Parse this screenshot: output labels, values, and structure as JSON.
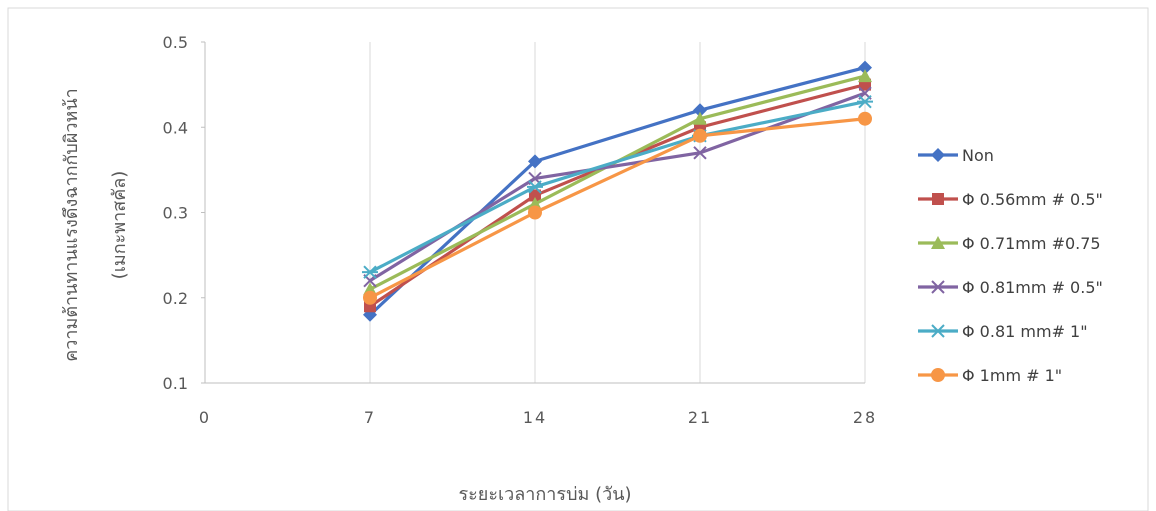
{
  "chart_data": {
    "type": "line",
    "xlabel": "ระยะเวลาการบ่ม (วัน)",
    "ylabel": "ความต้านทานแรงดึงฉากกับผิวหน้า",
    "ylabel_sub": "(เมกะพาสคัล)",
    "xlim": [
      0,
      28
    ],
    "ylim": [
      0.1,
      0.5
    ],
    "x_ticks": [
      "0",
      "7",
      "14",
      "21",
      "28"
    ],
    "y_ticks": [
      "0.1",
      "0.2",
      "0.3",
      "0.4",
      "0.5"
    ],
    "grid": "vertical",
    "legend_position": "right",
    "x": [
      7,
      14,
      21,
      28
    ],
    "series": [
      {
        "name": "Non",
        "color": "#4472C4",
        "marker": "diamond",
        "values": [
          0.18,
          0.36,
          0.42,
          0.47
        ]
      },
      {
        "name": "Φ 0.56mm # 0.5\"",
        "color": "#C0504D",
        "marker": "square",
        "values": [
          0.19,
          0.32,
          0.4,
          0.45
        ]
      },
      {
        "name": "Φ 0.71mm #0.75",
        "color": "#9BBB59",
        "marker": "triangle",
        "values": [
          0.21,
          0.31,
          0.41,
          0.46
        ]
      },
      {
        "name": "Φ 0.81mm # 0.5\"",
        "color": "#8064A2",
        "marker": "x",
        "values": [
          0.22,
          0.34,
          0.37,
          0.44
        ]
      },
      {
        "name": "Φ 0.81 mm# 1\"",
        "color": "#4BACC6",
        "marker": "star",
        "values": [
          0.23,
          0.33,
          0.39,
          0.43
        ]
      },
      {
        "name": "Φ 1mm # 1\"",
        "color": "#F79646",
        "marker": "circle",
        "values": [
          0.2,
          0.3,
          0.39,
          0.41
        ]
      }
    ]
  }
}
